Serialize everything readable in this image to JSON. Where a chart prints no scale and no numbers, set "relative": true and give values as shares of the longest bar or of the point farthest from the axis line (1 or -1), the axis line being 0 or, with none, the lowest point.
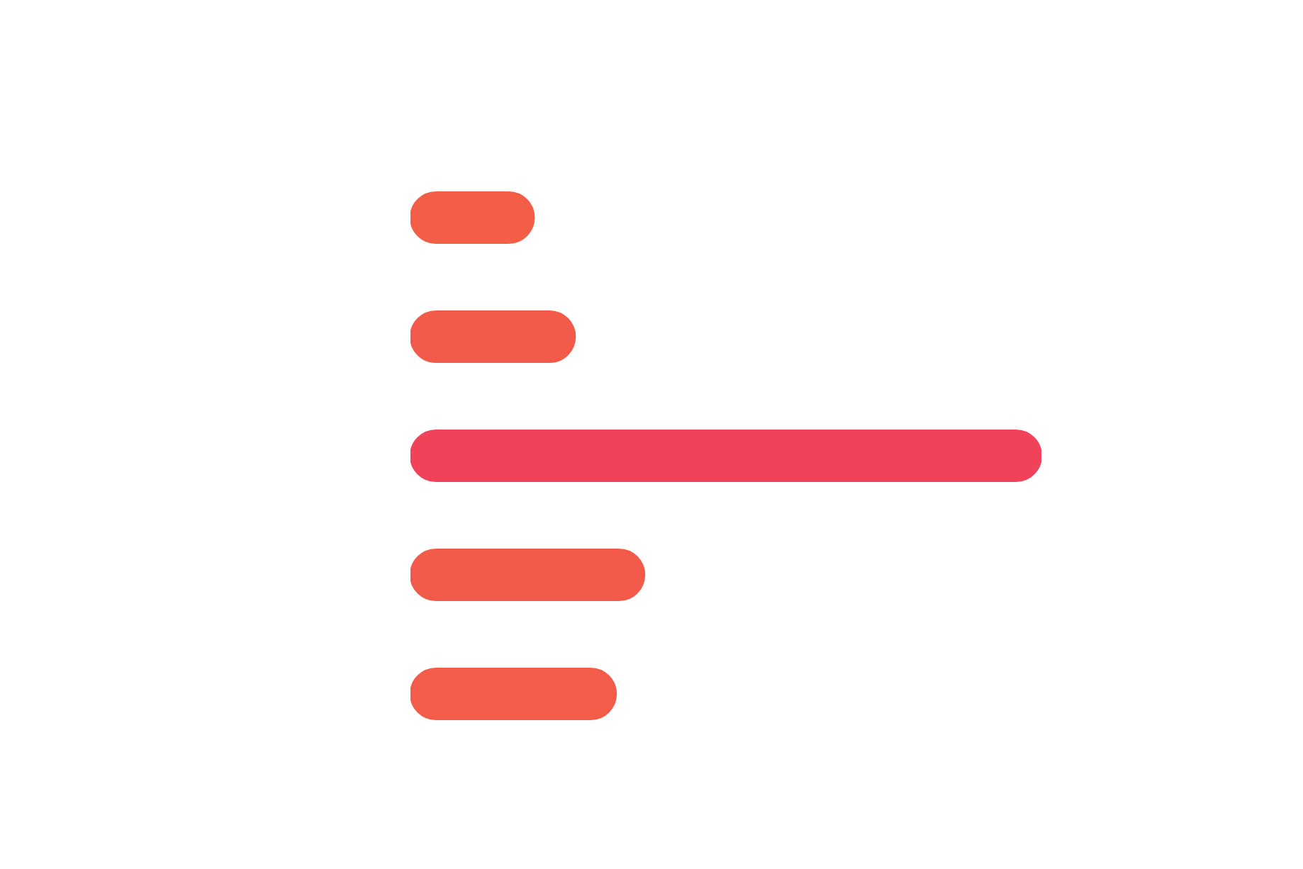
{
  "chart_data": {
    "type": "bar",
    "orientation": "horizontal",
    "relative": true,
    "categories": [
      null,
      null,
      null,
      null,
      null
    ],
    "values": [
      0.196,
      0.261,
      1,
      0.371,
      0.326
    ],
    "colors": [
      "#f25e46",
      "#f25a4a",
      "#f0435a",
      "#f25a4a",
      "#f25c48"
    ]
  }
}
